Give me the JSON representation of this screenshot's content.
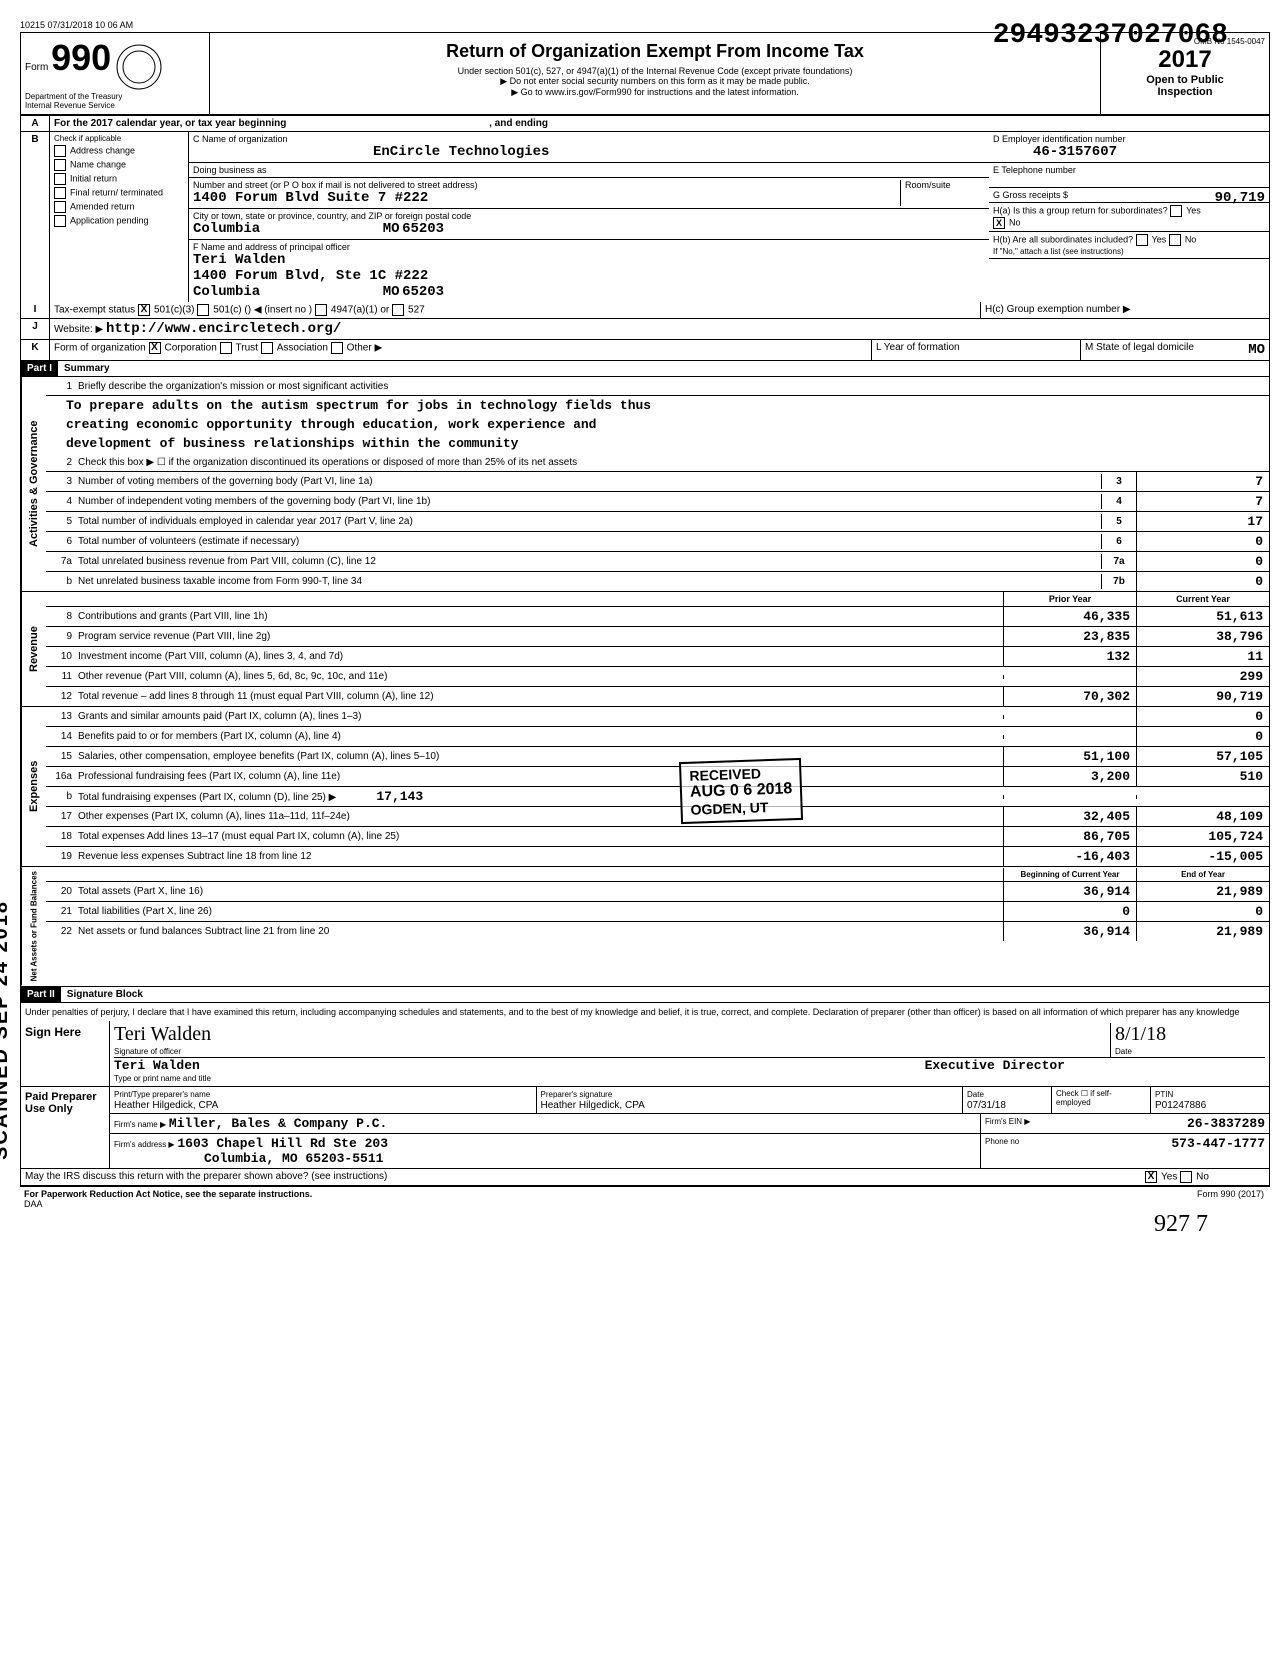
{
  "meta": {
    "top_left": "10215 07/31/2018 10 06 AM",
    "stamp_number": "29493237027068",
    "omb": "OMB No 1545-0047"
  },
  "header": {
    "form_word": "Form",
    "form_number": "990",
    "title": "Return of Organization Exempt From Income Tax",
    "subtitle1": "Under section 501(c), 527, or 4947(a)(1) of the Internal Revenue Code (except private foundations)",
    "subtitle2": "▶ Do not enter social security numbers on this form as it may be made public.",
    "subtitle3": "▶ Go to www.irs.gov/Form990 for instructions and the latest information.",
    "dept": "Department of the Treasury",
    "irs": "Internal Revenue Service",
    "year": "2017",
    "open_public1": "Open to Public",
    "open_public2": "Inspection"
  },
  "lineA": {
    "label": "A",
    "text": "For the 2017 calendar year, or tax year beginning",
    "and_ending": ", and ending"
  },
  "lineB": {
    "label": "B",
    "text": "Check if applicable",
    "opts": [
      "Address change",
      "Name change",
      "Initial return",
      "Final return/ terminated",
      "Amended return",
      "Application pending"
    ]
  },
  "org": {
    "c_label": "C Name of organization",
    "name": "EnCircle Technologies",
    "dba_label": "Doing business as",
    "addr_label": "Number and street (or P O box if mail is not delivered to street address)",
    "addr": "1400 Forum Blvd Suite 7 #222",
    "room_label": "Room/suite",
    "city_label": "City or town, state or province, country, and ZIP or foreign postal code",
    "city": "Columbia",
    "state": "MO",
    "zip": "65203",
    "f_label": "F Name and address of principal officer",
    "officer_name": "Teri Walden",
    "officer_addr": "1400 Forum Blvd, Ste 1C #222",
    "officer_city": "Columbia",
    "officer_state": "MO",
    "officer_zip": "65203"
  },
  "right": {
    "d_label": "D Employer identification number",
    "ein": "46-3157607",
    "e_label": "E Telephone number",
    "g_label": "G Gross receipts $",
    "gross": "90,719",
    "ha_label": "H(a) Is this a group return for subordinates?",
    "ha_yes": "Yes",
    "ha_no": "No",
    "ha_checked": "X",
    "hb_label": "H(b) Are all subordinates included?",
    "hb_yes": "Yes",
    "hb_no": "No",
    "hb_note": "If \"No,\" attach a list (see instructions)",
    "hc_label": "H(c) Group exemption number ▶"
  },
  "lineI": {
    "label": "I",
    "text": "Tax-exempt status",
    "opt1": "501(c)(3)",
    "opt1_checked": "X",
    "opt2": "501(c) (",
    "opt2_insert": ") ◀ (insert no )",
    "opt3": "4947(a)(1) or",
    "opt4": "527"
  },
  "lineJ": {
    "label": "J",
    "text": "Website: ▶",
    "url": "http://www.encircletech.org/"
  },
  "lineK": {
    "label": "K",
    "text": "Form of organization",
    "opt1": "Corporation",
    "opt1_checked": "X",
    "opt2": "Trust",
    "opt3": "Association",
    "opt4": "Other ▶",
    "l_label": "L   Year of formation",
    "m_label": "M  State of legal domicile",
    "m_val": "MO"
  },
  "part1": {
    "label": "Part I",
    "title": "Summary"
  },
  "governance": {
    "label": "Activities & Governance",
    "line1_desc": "Briefly describe the organization's mission or most significant activities",
    "mission1": "To prepare adults on the autism spectrum for jobs in technology fields thus",
    "mission2": "creating economic opportunity through education, work experience and",
    "mission3": "development of business relationships within the community",
    "line2_desc": "Check this box ▶ ☐  if the organization discontinued its operations or disposed of more than 25% of its net assets",
    "line3_desc": "Number of voting members of the governing body (Part VI, line 1a)",
    "line3_box": "3",
    "line3_val": "7",
    "line4_desc": "Number of independent voting members of the governing body (Part VI, line 1b)",
    "line4_box": "4",
    "line4_val": "7",
    "line5_desc": "Total number of individuals employed in calendar year 2017 (Part V, line 2a)",
    "line5_box": "5",
    "line5_val": "17",
    "line6_desc": "Total number of volunteers (estimate if necessary)",
    "line6_box": "6",
    "line6_val": "0",
    "line7a_desc": "Total unrelated business revenue from Part VIII, column (C), line 12",
    "line7a_box": "7a",
    "line7a_val": "0",
    "line7b_desc": "Net unrelated business taxable income from Form 990-T, line 34",
    "line7b_box": "7b",
    "line7b_val": "0"
  },
  "revenue": {
    "label": "Revenue",
    "prior_label": "Prior Year",
    "current_label": "Current Year",
    "lines": [
      {
        "num": "8",
        "desc": "Contributions and grants (Part VIII, line 1h)",
        "prior": "46,335",
        "curr": "51,613"
      },
      {
        "num": "9",
        "desc": "Program service revenue (Part VIII, line 2g)",
        "prior": "23,835",
        "curr": "38,796"
      },
      {
        "num": "10",
        "desc": "Investment income (Part VIII, column (A), lines 3, 4, and 7d)",
        "prior": "132",
        "curr": "11"
      },
      {
        "num": "11",
        "desc": "Other revenue (Part VIII, column (A), lines 5, 6d, 8c, 9c, 10c, and 11e)",
        "prior": "",
        "curr": "299"
      },
      {
        "num": "12",
        "desc": "Total revenue – add lines 8 through 11 (must equal Part VIII, column (A), line 12)",
        "prior": "70,302",
        "curr": "90,719"
      }
    ]
  },
  "expenses": {
    "label": "Expenses",
    "lines": [
      {
        "num": "13",
        "desc": "Grants and similar amounts paid (Part IX, column (A), lines 1–3)",
        "prior": "",
        "curr": "0"
      },
      {
        "num": "14",
        "desc": "Benefits paid to or for members (Part IX, column (A), line 4)",
        "prior": "",
        "curr": "0"
      },
      {
        "num": "15",
        "desc": "Salaries, other compensation, employee benefits (Part IX, column (A), lines 5–10)",
        "prior": "51,100",
        "curr": "57,105"
      },
      {
        "num": "16a",
        "desc": "Professional fundraising fees (Part IX, column (A), line 11e)",
        "prior": "3,200",
        "curr": "510"
      },
      {
        "num": "b",
        "desc": "Total fundraising expenses (Part IX, column (D), line 25) ▶",
        "inline": "17,143",
        "prior": "",
        "curr": ""
      },
      {
        "num": "17",
        "desc": "Other expenses (Part IX, column (A), lines 11a–11d, 11f–24e)",
        "prior": "32,405",
        "curr": "48,109"
      },
      {
        "num": "18",
        "desc": "Total expenses Add lines 13–17 (must equal Part IX, column (A), line 25)",
        "prior": "86,705",
        "curr": "105,724"
      },
      {
        "num": "19",
        "desc": "Revenue less expenses Subtract line 18 from line 12",
        "prior": "-16,403",
        "curr": "-15,005"
      }
    ]
  },
  "netassets": {
    "label": "Net Assets or Fund Balances",
    "begin_label": "Beginning of Current Year",
    "end_label": "End of Year",
    "lines": [
      {
        "num": "20",
        "desc": "Total assets (Part X, line 16)",
        "prior": "36,914",
        "curr": "21,989"
      },
      {
        "num": "21",
        "desc": "Total liabilities (Part X, line 26)",
        "prior": "0",
        "curr": "0"
      },
      {
        "num": "22",
        "desc": "Net assets or fund balances Subtract line 21 from line 20",
        "prior": "36,914",
        "curr": "21,989"
      }
    ]
  },
  "part2": {
    "label": "Part II",
    "title": "Signature Block",
    "declaration": "Under penalties of perjury, I declare that I have examined this return, including accompanying schedules and statements, and to the best of my knowledge and belief, it is true, correct, and complete. Declaration of preparer (other than officer) is based on all information of which preparer has any knowledge"
  },
  "sign": {
    "sign_here": "Sign Here",
    "sig_handwritten": "Teri Walden",
    "sig_label": "Signature of officer",
    "date_label": "Date",
    "date_hand": "8/1/18",
    "name": "Teri Walden",
    "title": "Executive Director",
    "name_label": "Type or print name and title"
  },
  "preparer": {
    "label": "Paid Preparer Use Only",
    "print_label": "Print/Type preparer's name",
    "print_name": "Heather Hilgedick, CPA",
    "sig_label": "Preparer's signature",
    "sig_name": "Heather Hilgedick, CPA",
    "date_label": "Date",
    "date": "07/31/18",
    "check_label": "Check ☐ if self-employed",
    "ptin_label": "PTIN",
    "ptin": "P01247886",
    "firm_label": "Firm's name ▶",
    "firm_name": "Miller, Bales & Company P.C.",
    "firm_ein_label": "Firm's EIN ▶",
    "firm_ein": "26-3837289",
    "firm_addr_label": "Firm's address ▶",
    "firm_addr1": "1603 Chapel Hill Rd Ste 203",
    "firm_addr2": "Columbia, MO  65203-5511",
    "phone_label": "Phone no",
    "phone": "573-447-1777"
  },
  "bottom": {
    "discuss": "May the IRS discuss this return with the preparer shown above? (see instructions)",
    "yes": "Yes",
    "yes_checked": "X",
    "no": "No",
    "paperwork": "For Paperwork Reduction Act Notice, see the separate instructions.",
    "daa": "DAA",
    "form": "Form 990 (2017)",
    "hand": "927  7"
  },
  "scanned": "SCANNED SEP 24 2018",
  "received": {
    "label": "RECEIVED",
    "date": "AUG 0 6 2018",
    "org": "OGDEN, UT"
  }
}
